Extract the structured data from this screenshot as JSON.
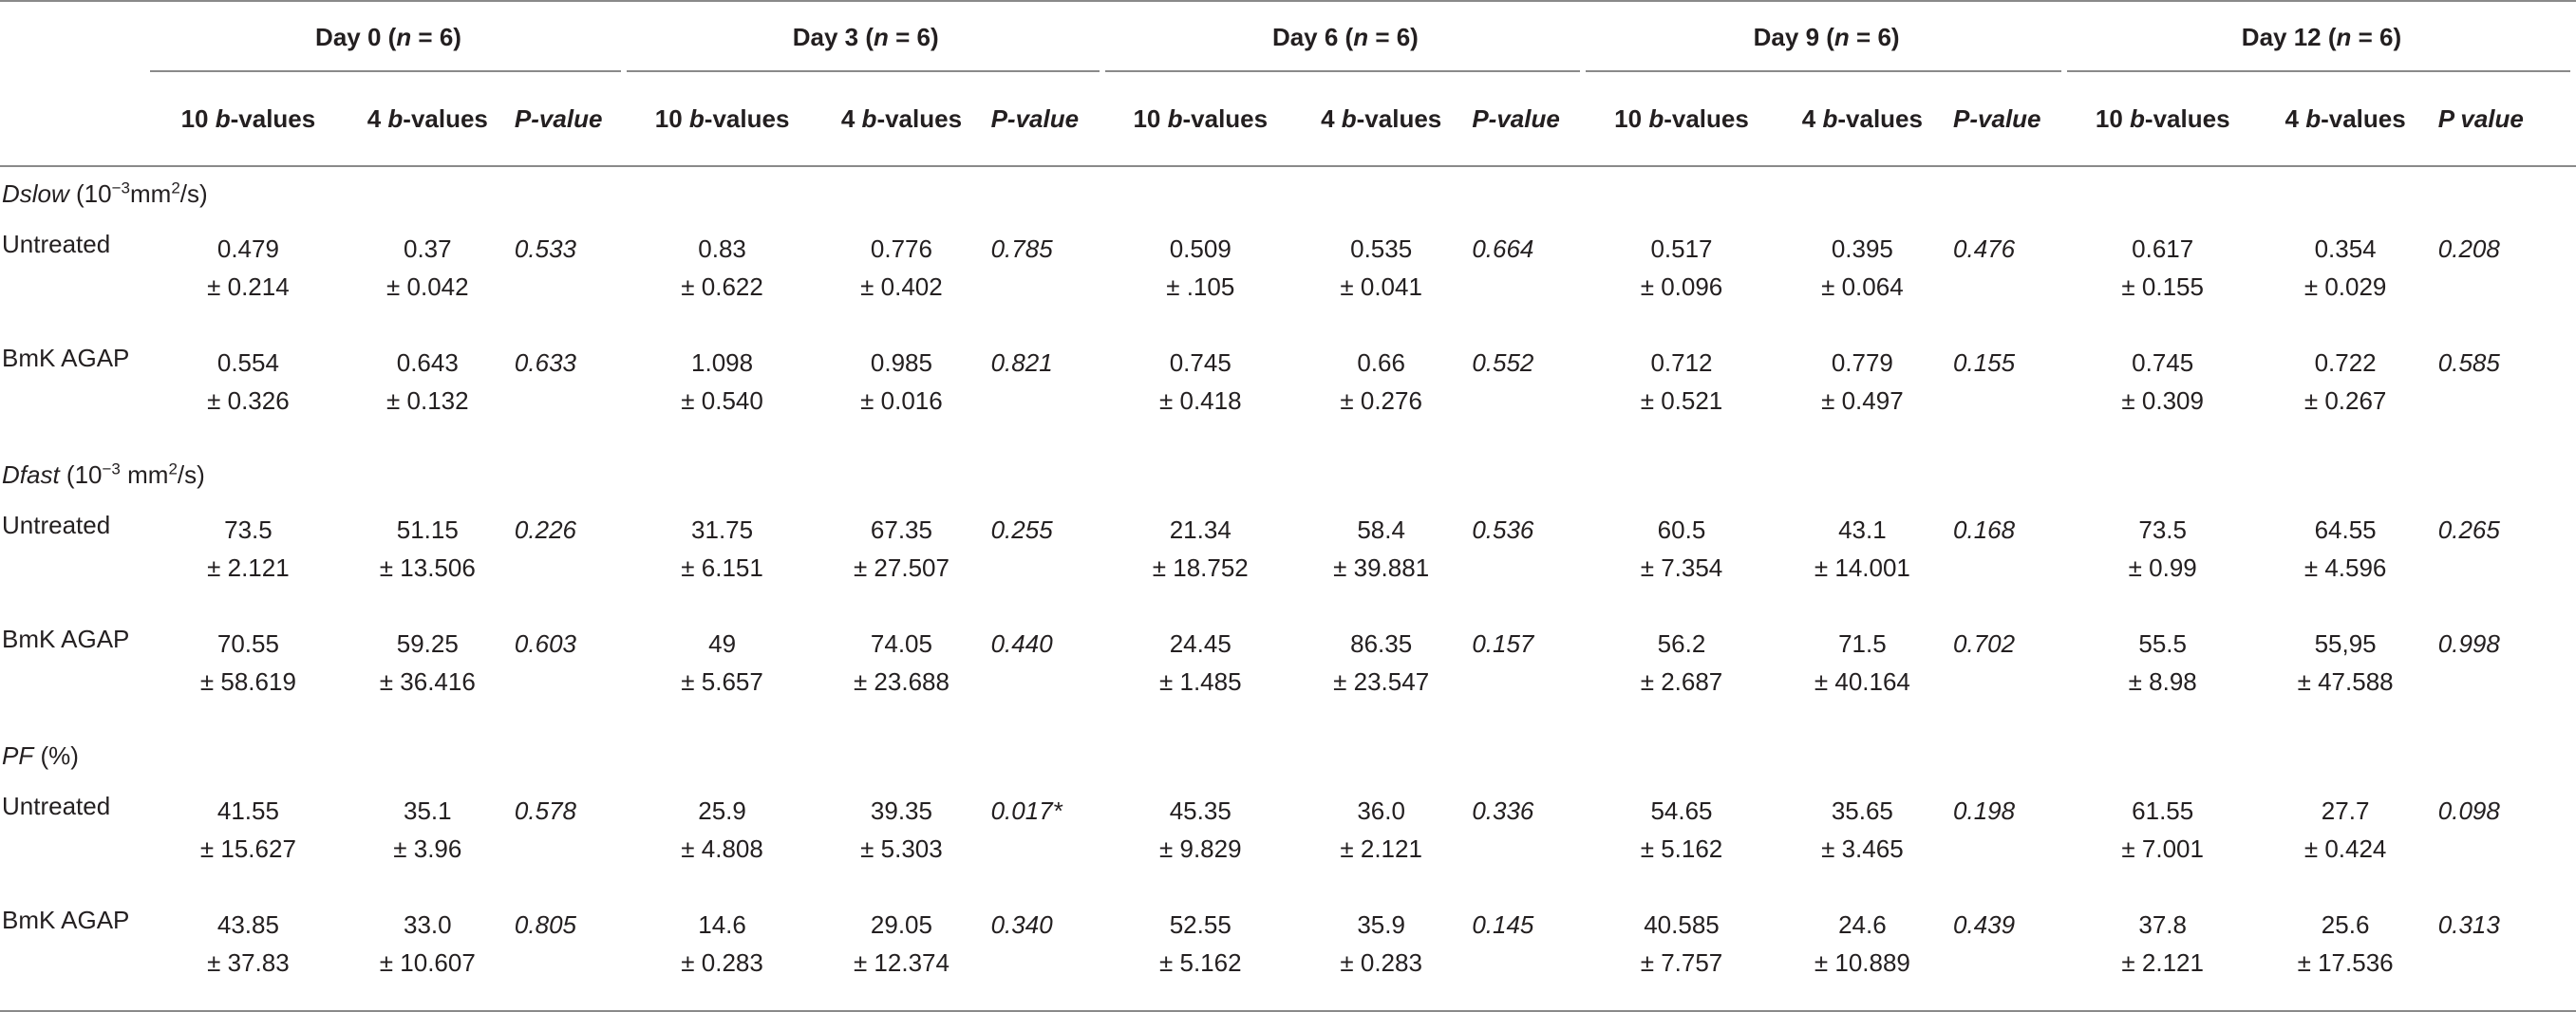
{
  "days": [
    {
      "label": "Day 0 (",
      "n": "n",
      "rest": " = 6)"
    },
    {
      "label": "Day 3 (",
      "n": "n",
      "rest": " = 6)"
    },
    {
      "label": "Day 6 (",
      "n": "n",
      "rest": " = 6)"
    },
    {
      "label": "Day 9 (",
      "n": "n",
      "rest": " = 6)"
    },
    {
      "label": "Day 12 (",
      "n": "n",
      "rest": " = 6)"
    }
  ],
  "col_headers": {
    "ten_pre": "10 ",
    "ten_b": "b",
    "ten_post": "-values",
    "four_pre": "4 ",
    "four_b": "b",
    "four_post": "-values",
    "p": "P-value",
    "p_last": "P value"
  },
  "sections": {
    "dslow": {
      "name": "Dslow",
      "unit_pre": " (10",
      "exp": "−3",
      "unit_mid": "mm",
      "sq": "2",
      "unit_post": "/s)"
    },
    "dfast": {
      "name": "Dfast",
      "unit_pre": " (10",
      "exp": "−3",
      "unit_mid": " mm",
      "sq": "2",
      "unit_post": "/s)"
    },
    "pf": {
      "name": "PF",
      "unit_post": " (%)"
    }
  },
  "rows": [
    {
      "label": "Untreated",
      "cells": [
        [
          "0.479",
          "± 0.214"
        ],
        [
          "0.37",
          "± 0.042"
        ],
        "0.533",
        [
          "0.83",
          "± 0.622"
        ],
        [
          "0.776",
          "± 0.402"
        ],
        "0.785",
        [
          "0.509",
          "± .105"
        ],
        [
          "0.535",
          "± 0.041"
        ],
        "0.664",
        [
          "0.517",
          "± 0.096"
        ],
        [
          "0.395",
          "± 0.064"
        ],
        "0.476",
        [
          "0.617",
          "± 0.155"
        ],
        [
          "0.354",
          "± 0.029"
        ],
        "0.208"
      ]
    },
    {
      "label": "BmK AGAP",
      "cells": [
        [
          "0.554",
          "± 0.326"
        ],
        [
          "0.643",
          "± 0.132"
        ],
        "0.633",
        [
          "1.098",
          "± 0.540"
        ],
        [
          "0.985",
          "± 0.016"
        ],
        "0.821",
        [
          "0.745",
          "± 0.418"
        ],
        [
          "0.66",
          "± 0.276"
        ],
        "0.552",
        [
          "0.712",
          "± 0.521"
        ],
        [
          "0.779",
          "± 0.497"
        ],
        "0.155",
        [
          "0.745",
          "± 0.309"
        ],
        [
          "0.722",
          "± 0.267"
        ],
        "0.585"
      ]
    },
    {
      "label": "Untreated",
      "cells": [
        [
          "73.5",
          "± 2.121"
        ],
        [
          "51.15",
          "± 13.506"
        ],
        "0.226",
        [
          "31.75",
          "± 6.151"
        ],
        [
          "67.35",
          "± 27.507"
        ],
        "0.255",
        [
          "21.34",
          "± 18.752"
        ],
        [
          "58.4",
          "± 39.881"
        ],
        "0.536",
        [
          "60.5",
          "± 7.354"
        ],
        [
          "43.1",
          "± 14.001"
        ],
        "0.168",
        [
          "73.5",
          "± 0.99"
        ],
        [
          "64.55",
          "± 4.596"
        ],
        "0.265"
      ]
    },
    {
      "label": "BmK AGAP",
      "cells": [
        [
          "70.55",
          "± 58.619"
        ],
        [
          "59.25",
          "± 36.416"
        ],
        "0.603",
        [
          "49",
          "± 5.657"
        ],
        [
          "74.05",
          "± 23.688"
        ],
        "0.440",
        [
          "24.45",
          "± 1.485"
        ],
        [
          "86.35",
          "± 23.547"
        ],
        "0.157",
        [
          "56.2",
          "± 2.687"
        ],
        [
          "71.5",
          "± 40.164"
        ],
        "0.702",
        [
          "55.5",
          "± 8.98"
        ],
        [
          "55,95",
          "± 47.588"
        ],
        "0.998"
      ]
    },
    {
      "label": "Untreated",
      "cells": [
        [
          "41.55",
          "± 15.627"
        ],
        [
          "35.1",
          "± 3.96"
        ],
        "0.578",
        [
          "25.9",
          "± 4.808"
        ],
        [
          "39.35",
          "± 5.303"
        ],
        "0.017*",
        [
          "45.35",
          "± 9.829"
        ],
        [
          "36.0",
          "± 2.121"
        ],
        "0.336",
        [
          "54.65",
          "± 5.162"
        ],
        [
          "35.65",
          "± 3.465"
        ],
        "0.198",
        [
          "61.55",
          "± 7.001"
        ],
        [
          "27.7",
          "± 0.424"
        ],
        "0.098"
      ]
    },
    {
      "label": "BmK AGAP",
      "cells": [
        [
          "43.85",
          "± 37.83"
        ],
        [
          "33.0",
          "± 10.607"
        ],
        "0.805",
        [
          "14.6",
          "± 0.283"
        ],
        [
          "29.05",
          "± 12.374"
        ],
        "0.340",
        [
          "52.55",
          "± 5.162"
        ],
        [
          "35.9",
          "± 0.283"
        ],
        "0.145",
        [
          "40.585",
          "± 7.757"
        ],
        [
          "24.6",
          "± 10.889"
        ],
        "0.439",
        [
          "37.8",
          "± 2.121"
        ],
        [
          "25.6",
          "± 17.536"
        ],
        "0.313"
      ]
    }
  ]
}
